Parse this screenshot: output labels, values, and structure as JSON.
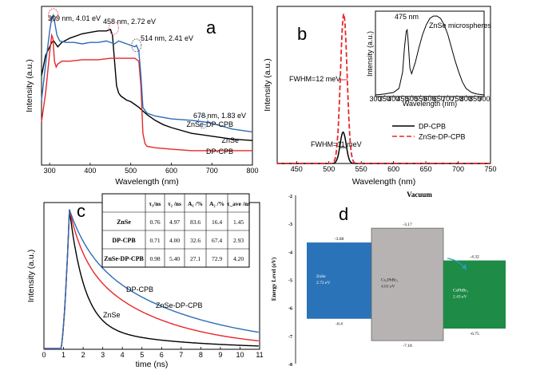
{
  "chart_data": [
    {
      "panel": "a",
      "type": "line",
      "xlabel": "Wavelength (nm)",
      "ylabel": "Intensity (a.u.)",
      "xlim": [
        280,
        800
      ],
      "xticks": [
        300,
        400,
        500,
        600,
        700,
        800
      ],
      "ylim": [
        0,
        1.1
      ],
      "series": [
        {
          "name": "ZnSe",
          "color": "#000000",
          "x": [
            280,
            290,
            300,
            305,
            310,
            315,
            320,
            330,
            350,
            380,
            400,
            420,
            440,
            450,
            455,
            460,
            465,
            470,
            475,
            480,
            490,
            500,
            510,
            520,
            540,
            560,
            580,
            600,
            650,
            700,
            750,
            800
          ],
          "y": [
            0.62,
            0.76,
            0.82,
            0.85,
            0.86,
            0.84,
            0.82,
            0.85,
            0.88,
            0.91,
            0.92,
            0.93,
            0.93,
            0.94,
            0.9,
            0.72,
            0.55,
            0.5,
            0.48,
            0.47,
            0.45,
            0.44,
            0.42,
            0.4,
            0.35,
            0.31,
            0.28,
            0.26,
            0.22,
            0.2,
            0.18,
            0.17
          ]
        },
        {
          "name": "DP-CPB",
          "color": "#e8262a",
          "x": [
            280,
            290,
            300,
            305,
            308,
            312,
            316,
            320,
            330,
            350,
            380,
            400,
            420,
            450,
            480,
            500,
            510,
            520,
            525,
            530,
            535,
            540,
            560,
            600,
            650,
            700,
            750,
            800
          ],
          "y": [
            0.3,
            0.5,
            0.78,
            0.9,
            0.88,
            0.72,
            0.68,
            0.7,
            0.72,
            0.72,
            0.73,
            0.73,
            0.73,
            0.74,
            0.74,
            0.74,
            0.74,
            0.72,
            0.55,
            0.22,
            0.15,
            0.13,
            0.12,
            0.11,
            0.1,
            0.1,
            0.1,
            0.1
          ]
        },
        {
          "name": "ZnSe-DP-CPB",
          "color": "#2b6cb3",
          "x": [
            280,
            290,
            300,
            305,
            309,
            313,
            318,
            325,
            340,
            360,
            380,
            400,
            420,
            440,
            460,
            470,
            480,
            490,
            500,
            510,
            514,
            520,
            525,
            530,
            540,
            560,
            600,
            650,
            678,
            700,
            750,
            800
          ],
          "y": [
            0.45,
            0.7,
            0.93,
            1.02,
            1.04,
            0.98,
            0.9,
            0.86,
            0.85,
            0.85,
            0.84,
            0.85,
            0.85,
            0.86,
            0.84,
            0.86,
            0.85,
            0.84,
            0.83,
            0.82,
            0.83,
            0.79,
            0.62,
            0.4,
            0.36,
            0.34,
            0.32,
            0.31,
            0.3,
            0.29,
            0.25,
            0.23
          ]
        }
      ],
      "legend": [
        {
          "text": "ZnSe-DP-CPB",
          "color": "#2b6cb3"
        },
        {
          "text": "ZnSe",
          "color": "#000000"
        },
        {
          "text": "DP-CPB",
          "color": "#e8262a"
        }
      ],
      "annotations": [
        {
          "text": "309 nm, 4.01 eV",
          "color": "#e8262a"
        },
        {
          "text": "458 nm, 2.72 eV",
          "color": "#d6519e"
        },
        {
          "text": "514 nm, 2.41 eV",
          "color": "#555555"
        },
        {
          "text": "678 nm, 1.83 eV",
          "color": "#2b6cb3"
        }
      ]
    },
    {
      "panel": "b",
      "type": "line",
      "xlabel": "Wavelength (nm)",
      "ylabel": "Intensity (a.u.)",
      "xlim": [
        420,
        750
      ],
      "xticks": [
        450,
        500,
        550,
        600,
        650,
        700,
        750
      ],
      "ylim": [
        0,
        1.05
      ],
      "series": [
        {
          "name": "DP-CPB",
          "color": "#000000",
          "center": 522,
          "fwhm": 11,
          "peak": 0.21
        },
        {
          "name": "ZnSe-DP-CPB",
          "color": "#e8262a",
          "center": 523,
          "fwhm": 12,
          "peak": 1.0
        }
      ],
      "annotations": [
        {
          "text": "FWHM=12 meV",
          "color": "#e8262a"
        },
        {
          "text": "FWHM=11 meV",
          "color": "#000000"
        }
      ],
      "inset": {
        "type": "line",
        "xlabel": "Wavelength (nm)",
        "ylabel": "Intensity (a.u.)",
        "xlim": [
          300,
          900
        ],
        "xticks": [
          300,
          350,
          400,
          450,
          500,
          550,
          600,
          650,
          700,
          750,
          800,
          850,
          900
        ],
        "title": "ZnSe microspheres",
        "peak_label": "475 nm",
        "x": [
          300,
          350,
          400,
          430,
          450,
          460,
          470,
          475,
          480,
          490,
          500,
          520,
          540,
          560,
          580,
          600,
          620,
          640,
          660,
          680,
          700,
          720,
          740,
          760,
          780,
          800,
          830,
          860,
          900
        ],
        "y": [
          0.02,
          0.03,
          0.05,
          0.1,
          0.3,
          0.6,
          0.8,
          0.82,
          0.7,
          0.35,
          0.28,
          0.42,
          0.6,
          0.76,
          0.88,
          0.96,
          0.99,
          0.99,
          0.96,
          0.88,
          0.76,
          0.6,
          0.44,
          0.3,
          0.18,
          0.1,
          0.05,
          0.03,
          0.02
        ]
      }
    },
    {
      "panel": "c",
      "type": "line",
      "xlabel": "time (ns)",
      "ylabel": "Intensity (a.u.)",
      "xlim": [
        0,
        11
      ],
      "xticks": [
        0,
        1,
        2,
        3,
        4,
        5,
        6,
        7,
        8,
        9,
        10,
        11
      ],
      "ylim": [
        0,
        1.05
      ],
      "peak_time": 1.3,
      "series": [
        {
          "name": "ZnSe",
          "color": "#000000",
          "tau1": 0.76,
          "tau2": 4.97,
          "A1": 83.6,
          "A2": 16.4
        },
        {
          "name": "DP-CPB",
          "color": "#e8262a",
          "tau1": 0.71,
          "tau2": 4.0,
          "A1": 32.6,
          "A2": 67.4
        },
        {
          "name": "ZnSe-DP-CPB",
          "color": "#2b6cb3",
          "tau1": 0.98,
          "tau2": 5.4,
          "A1": 27.1,
          "A2": 72.9
        }
      ],
      "table": {
        "headers": [
          "",
          "τ₁/ns",
          "τ₂ /ns",
          "A₁ /%",
          "A₂ /%",
          "τ_ave /ns"
        ],
        "rows": [
          [
            "ZnSe",
            "0.76",
            "4.97",
            "83.6",
            "16.4",
            "1.45"
          ],
          [
            "DP-CPB",
            "0.71",
            "4.00",
            "32.6",
            "67.4",
            "2.93"
          ],
          [
            "ZnSe-DP-CPB",
            "0.98",
            "5.40",
            "27.1",
            "72.9",
            "4.20"
          ]
        ]
      }
    },
    {
      "panel": "d",
      "type": "diagram",
      "title": "Vacuum",
      "ylabel": "Energy Level (eV)",
      "ylim": [
        -8,
        -2
      ],
      "yticks": [
        -2,
        -3,
        -4,
        -5,
        -6,
        -7,
        -8
      ],
      "bands": [
        {
          "material": "ZnSe",
          "gap": "2.72 eV",
          "top": -3.68,
          "bottom": -6.4,
          "color": "#2b73b8"
        },
        {
          "material": "Cs₂PbBr₄",
          "gap": "4.01 eV",
          "top": -3.17,
          "bottom": -7.18,
          "color": "#b7b3b2"
        },
        {
          "material": "CsPbBr₃",
          "gap": "2.43 eV",
          "top": -4.32,
          "bottom": -6.75,
          "color": "#1e8b47"
        }
      ],
      "level_labels": [
        "-3.68",
        "-3.17",
        "-4.32",
        "-6.4",
        "-7.18",
        "-6.75"
      ]
    }
  ],
  "panel_labels": [
    "a",
    "b",
    "c",
    "d"
  ]
}
